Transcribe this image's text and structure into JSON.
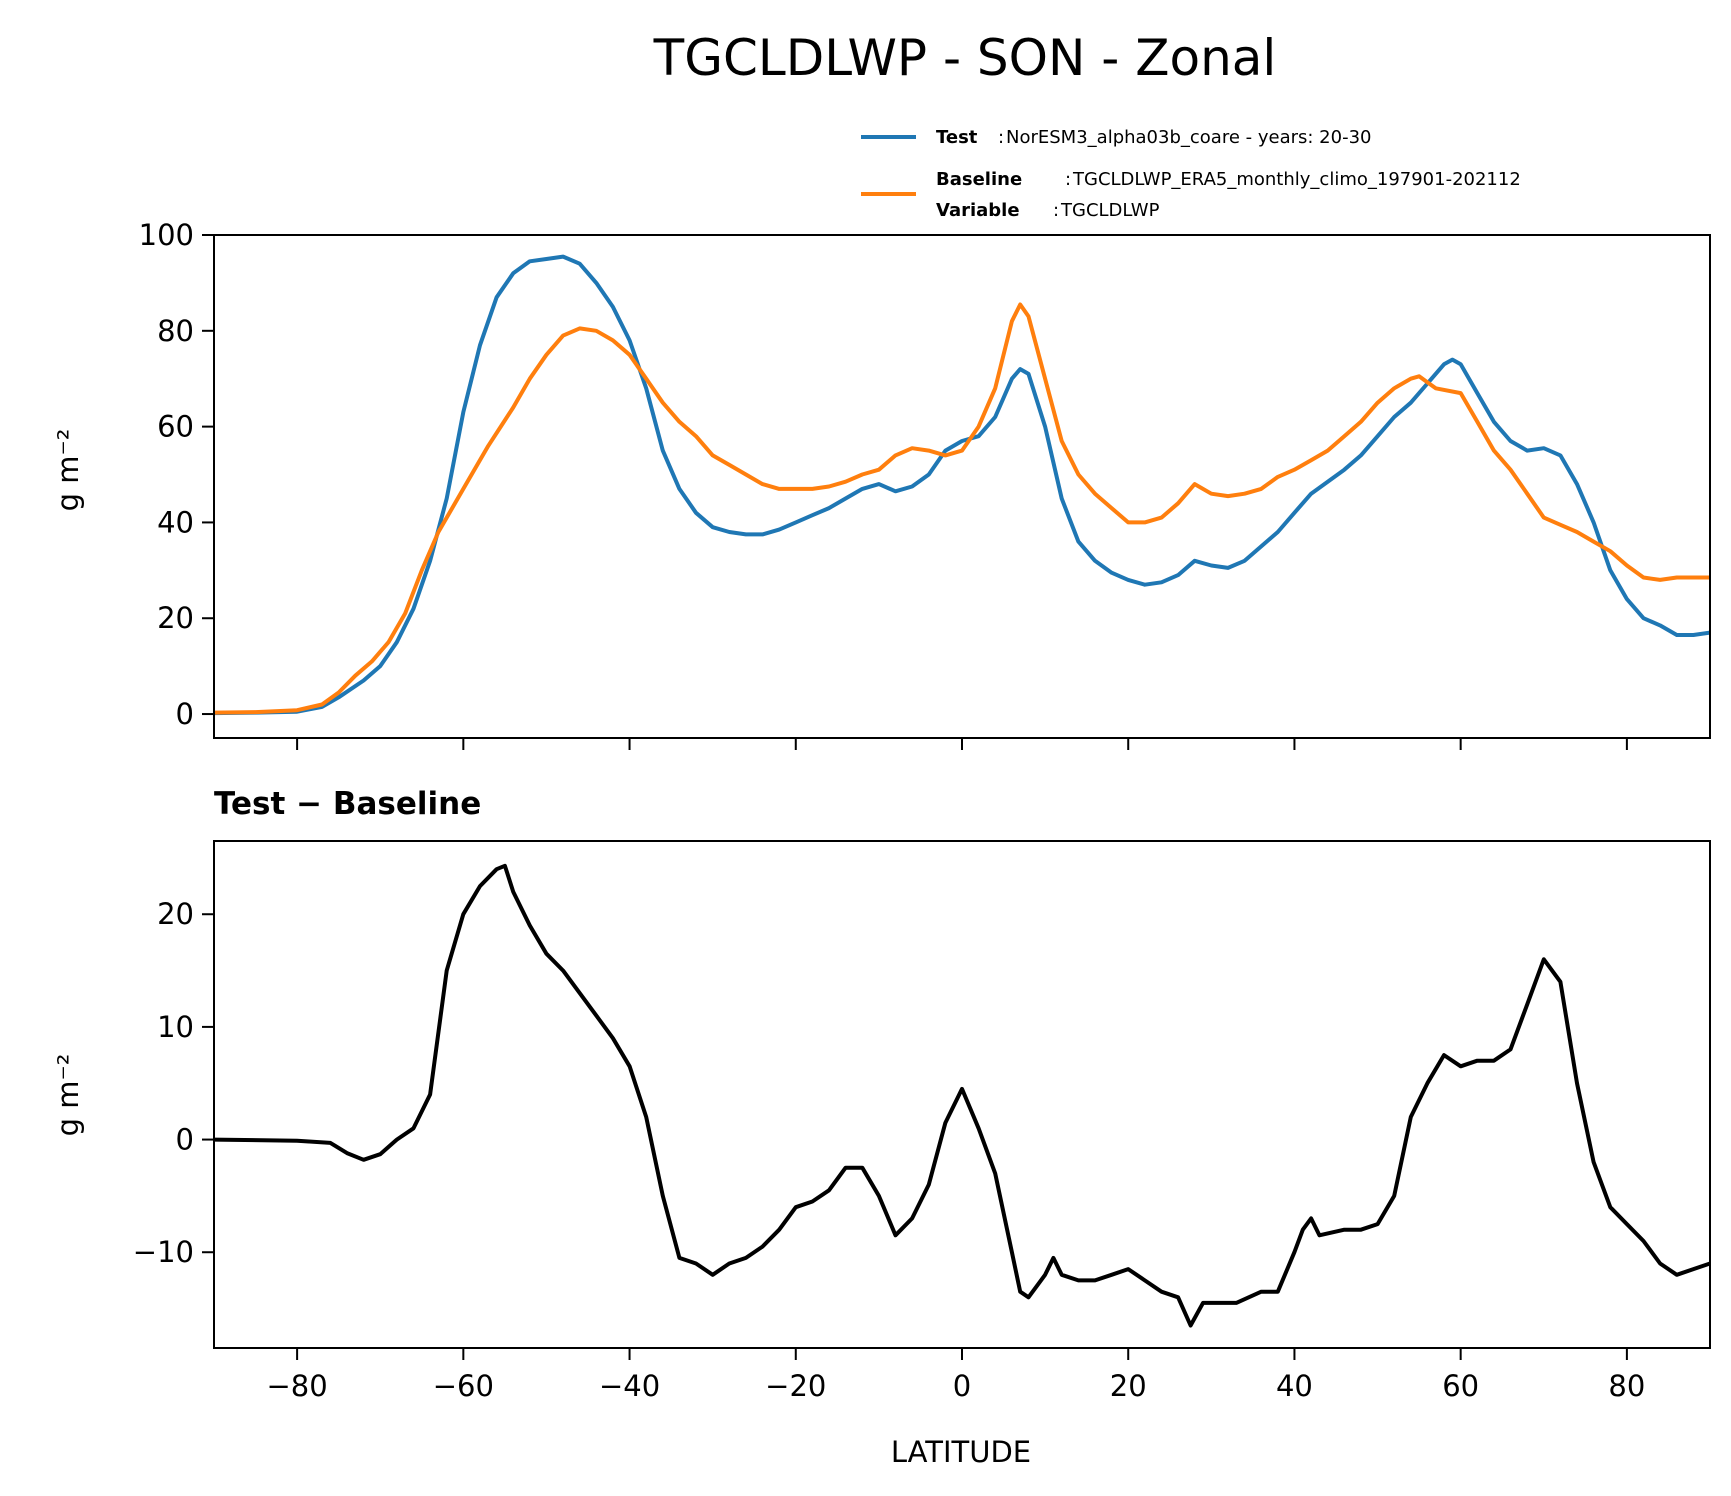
{
  "chart_data": [
    {
      "type": "line",
      "title": "TGCLDLWP - SON - Zonal",
      "xlabel": "",
      "ylabel": "g m⁻²",
      "xlim": [
        -90,
        90
      ],
      "ylim": [
        -5,
        100
      ],
      "xticks": [
        -80,
        -60,
        -40,
        -20,
        0,
        20,
        40,
        60,
        80
      ],
      "yticks": [
        0,
        20,
        40,
        60,
        80,
        100
      ],
      "ytick_labels": [
        "0",
        "20",
        "40",
        "60",
        "80",
        "100"
      ],
      "grid": false,
      "legend": {
        "placement": "top-right",
        "entries": [
          {
            "key": "Test",
            "text": "NorESM3_alpha03b_coare - years: 20-30",
            "color": "#1f77b4"
          },
          {
            "key": "Baseline",
            "text": "TGCLDLWP_ERA5_monthly_climo_197901-202112",
            "color": "#ff7f0e",
            "extra_key": "Variable",
            "extra_text": "TGCLDLWP"
          }
        ]
      },
      "series": [
        {
          "name": "Test",
          "color": "#1f77b4",
          "x": [
            -90,
            -85,
            -80,
            -77,
            -75,
            -72,
            -70,
            -68,
            -66,
            -64,
            -62,
            -60,
            -58,
            -56,
            -54,
            -52,
            -50,
            -48,
            -46,
            -44,
            -42,
            -40,
            -38,
            -36,
            -34,
            -32,
            -30,
            -28,
            -26,
            -24,
            -22,
            -20,
            -18,
            -16,
            -14,
            -12,
            -10,
            -8,
            -6,
            -4,
            -2,
            0,
            2,
            4,
            6,
            7,
            8,
            10,
            12,
            14,
            16,
            18,
            20,
            22,
            24,
            26,
            28,
            30,
            32,
            34,
            36,
            38,
            40,
            42,
            44,
            46,
            48,
            50,
            52,
            54,
            56,
            58,
            59,
            60,
            62,
            64,
            66,
            68,
            70,
            72,
            74,
            76,
            78,
            80,
            82,
            84,
            86,
            88,
            90
          ],
          "y": [
            0.2,
            0.3,
            0.5,
            1.5,
            3.5,
            7,
            10,
            15,
            22,
            32,
            45,
            63,
            77,
            87,
            92,
            94.5,
            95,
            95.5,
            94,
            90,
            85,
            78,
            68,
            55,
            47,
            42,
            39,
            38,
            37.5,
            37.5,
            38.5,
            40,
            41.5,
            43,
            45,
            47,
            48,
            46.5,
            47.5,
            50,
            55,
            57,
            58,
            62,
            70,
            72,
            71,
            60,
            45,
            36,
            32,
            29.5,
            28,
            27,
            27.5,
            29,
            32,
            31,
            30.5,
            32,
            35,
            38,
            42,
            46,
            48.5,
            51,
            54,
            58,
            62,
            65,
            69,
            73,
            74,
            73,
            67,
            61,
            57,
            55,
            55.5,
            54,
            48,
            40,
            30,
            24,
            20,
            18.5,
            16.5,
            16.5,
            17
          ]
        },
        {
          "name": "Baseline",
          "color": "#ff7f0e",
          "x": [
            -90,
            -85,
            -80,
            -77,
            -75,
            -73,
            -71,
            -69,
            -67,
            -65,
            -63,
            -60,
            -57,
            -54,
            -52,
            -50,
            -48,
            -46,
            -44,
            -42,
            -40,
            -38,
            -36,
            -34,
            -32,
            -30,
            -28,
            -26,
            -24,
            -22,
            -20,
            -18,
            -16,
            -14,
            -12,
            -10,
            -8,
            -6,
            -4,
            -2,
            0,
            2,
            4,
            6,
            7,
            8,
            10,
            12,
            14,
            16,
            18,
            20,
            22,
            24,
            26,
            28,
            30,
            32,
            34,
            36,
            38,
            40,
            42,
            44,
            46,
            48,
            50,
            52,
            54,
            55,
            57,
            60,
            62,
            64,
            66,
            68,
            70,
            72,
            74,
            76,
            78,
            80,
            82,
            84,
            86,
            88,
            90
          ],
          "y": [
            0.3,
            0.4,
            0.8,
            2,
            4.5,
            8,
            11,
            15,
            21,
            30,
            38,
            47,
            56,
            64,
            70,
            75,
            79,
            80.5,
            80,
            78,
            75,
            70,
            65,
            61,
            58,
            54,
            52,
            50,
            48,
            47,
            47,
            47,
            47.5,
            48.5,
            50,
            51,
            54,
            55.5,
            55,
            54,
            55,
            60,
            68,
            82,
            85.5,
            83,
            70,
            57,
            50,
            46,
            43,
            40,
            40,
            41,
            44,
            48,
            46,
            45.5,
            46,
            47,
            49.5,
            51,
            53,
            55,
            58,
            61,
            65,
            68,
            70,
            70.5,
            68,
            67,
            61,
            55,
            51,
            46,
            41,
            39.5,
            38,
            36,
            34,
            31,
            28.5,
            28,
            28.5,
            28.5,
            28.5
          ]
        }
      ]
    },
    {
      "type": "line",
      "title": "Test − Baseline",
      "xlabel": "LATITUDE",
      "ylabel": "g m⁻²",
      "xlim": [
        -90,
        90
      ],
      "ylim": [
        -18.5,
        26.5
      ],
      "xticks": [
        -80,
        -60,
        -40,
        -20,
        0,
        20,
        40,
        60,
        80
      ],
      "xtick_labels": [
        "−80",
        "−60",
        "−40",
        "−20",
        "0",
        "20",
        "40",
        "60",
        "80"
      ],
      "yticks": [
        -10,
        0,
        10,
        20
      ],
      "ytick_labels": [
        "−10",
        "0",
        "10",
        "20"
      ],
      "grid": false,
      "series": [
        {
          "name": "Test - Baseline",
          "color": "#000000",
          "x": [
            -90,
            -80,
            -76,
            -74,
            -72,
            -70,
            -68,
            -66,
            -64,
            -62,
            -60,
            -58,
            -56,
            -55,
            -54,
            -52,
            -50,
            -48,
            -46,
            -44,
            -42,
            -40,
            -38,
            -36,
            -34,
            -32,
            -30,
            -28,
            -26,
            -24,
            -22,
            -20,
            -18,
            -16,
            -14,
            -12,
            -10,
            -8,
            -6,
            -4,
            -2,
            0,
            2,
            4,
            6,
            7,
            8,
            10,
            11,
            12,
            14,
            16,
            18,
            20,
            22,
            24,
            26,
            27.5,
            29,
            31,
            33,
            36,
            38,
            40,
            41,
            42,
            43,
            46,
            48,
            50,
            52,
            54,
            56,
            58,
            60,
            62,
            64,
            66,
            68,
            70,
            72,
            74,
            76,
            78,
            80,
            82,
            84,
            86,
            88,
            90
          ],
          "y": [
            0,
            -0.1,
            -0.3,
            -1.2,
            -1.8,
            -1.3,
            0,
            1,
            4,
            15,
            20,
            22.5,
            24,
            24.3,
            22,
            19,
            16.5,
            15,
            13,
            11,
            9,
            6.5,
            2,
            -5,
            -10.5,
            -11,
            -12,
            -11,
            -10.5,
            -9.5,
            -8,
            -6,
            -5.5,
            -4.5,
            -2.5,
            -2.5,
            -5,
            -8.5,
            -7,
            -4,
            1.5,
            4.5,
            1,
            -3,
            -10,
            -13.5,
            -14,
            -12,
            -10.5,
            -12,
            -12.5,
            -12.5,
            -12,
            -11.5,
            -12.5,
            -13.5,
            -14,
            -16.5,
            -14.5,
            -14.5,
            -14.5,
            -13.5,
            -13.5,
            -10,
            -8,
            -7,
            -8.5,
            -8,
            -8,
            -7.5,
            -5,
            2,
            5,
            7.5,
            6.5,
            7,
            7,
            8,
            12,
            16,
            14,
            5,
            -2,
            -6,
            -7.5,
            -9,
            -11,
            -12,
            -11.5,
            -11
          ]
        }
      ]
    }
  ]
}
